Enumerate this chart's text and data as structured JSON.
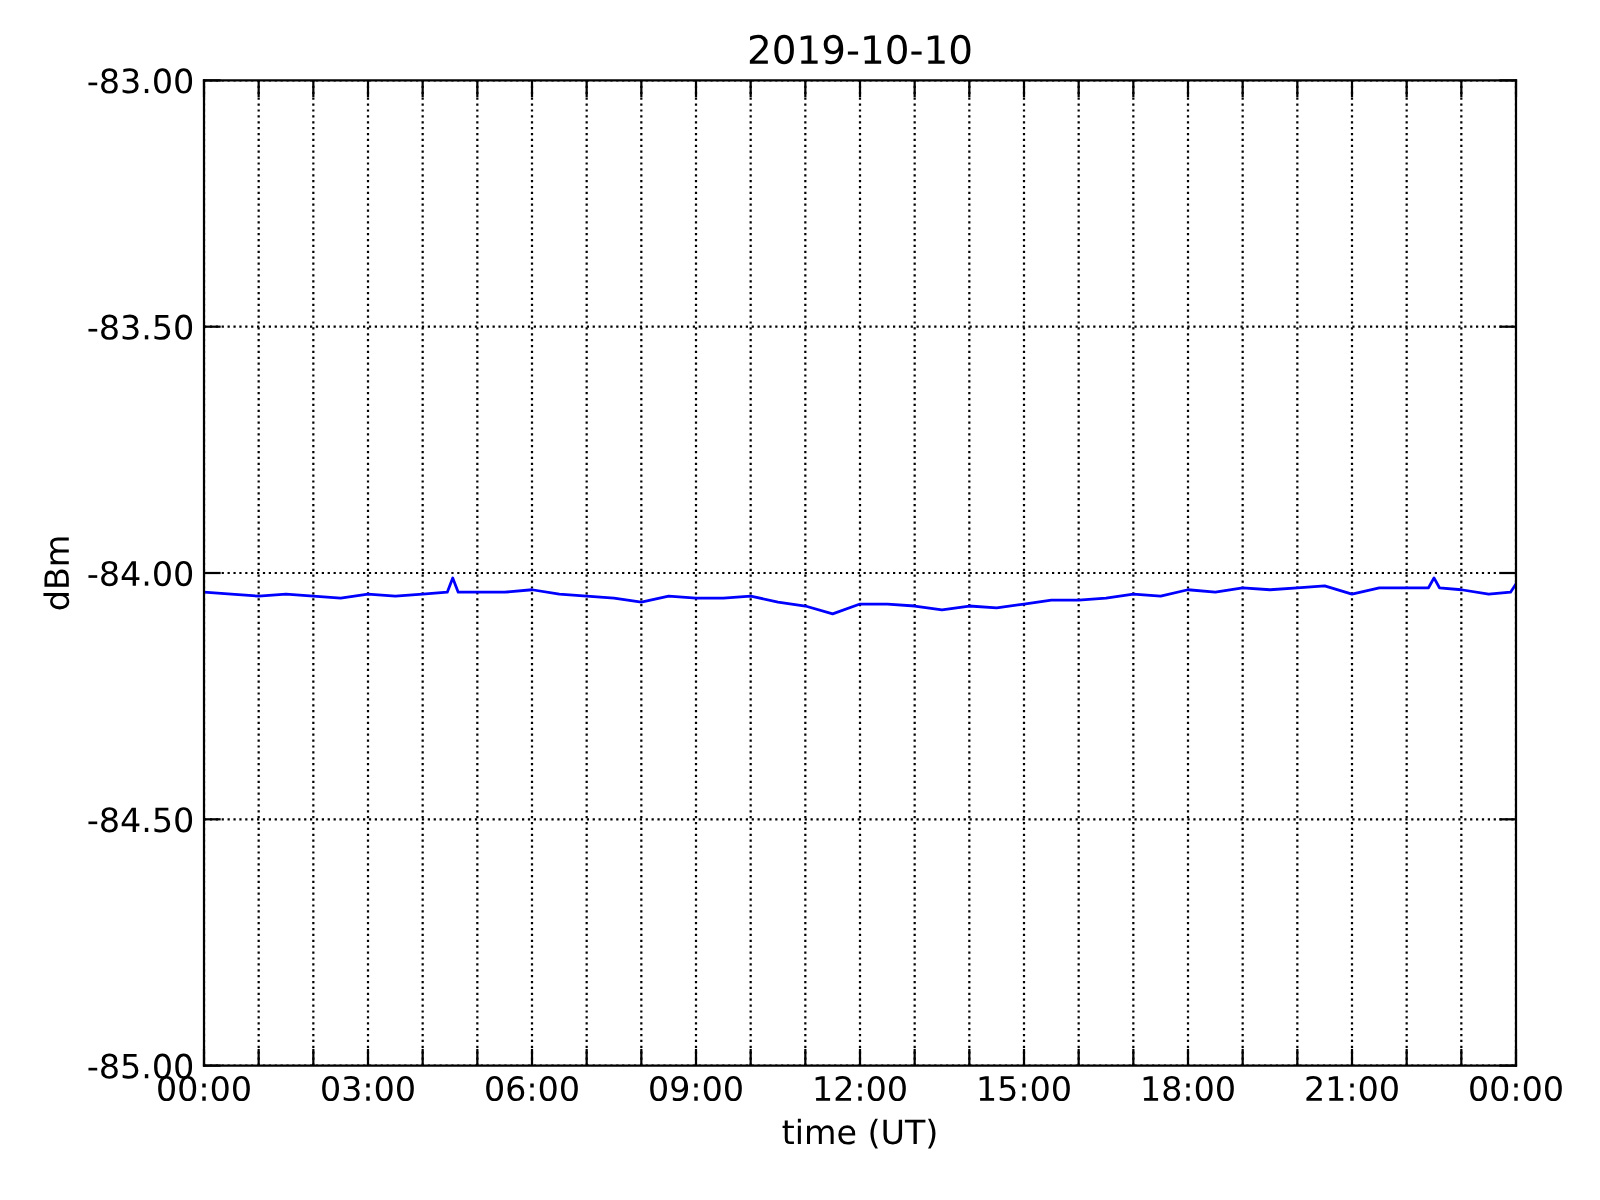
{
  "chart_data": {
    "type": "line",
    "title": "2019-10-10",
    "xlabel": "time (UT)",
    "ylabel": "dBm",
    "x": [
      0,
      0.5,
      1,
      1.5,
      2,
      2.5,
      3,
      3.5,
      4,
      4.45,
      4.55,
      4.65,
      5,
      5.5,
      6,
      6.5,
      7,
      7.5,
      8,
      8.5,
      9,
      9.5,
      10,
      10.5,
      11,
      11.5,
      12,
      12.5,
      13,
      13.5,
      14,
      14.5,
      15,
      15.5,
      16,
      16.5,
      17,
      17.5,
      18,
      18.5,
      19,
      19.5,
      20,
      20.5,
      21,
      21.5,
      22,
      22.4,
      22.5,
      22.6,
      23,
      23.5,
      23.9,
      24
    ],
    "series": [
      {
        "color": "#0000ff",
        "values": [
          -84.039,
          -84.043,
          -84.047,
          -84.043,
          -84.047,
          -84.051,
          -84.043,
          -84.047,
          -84.043,
          -84.039,
          -84.01,
          -84.039,
          -84.039,
          -84.039,
          -84.034,
          -84.043,
          -84.047,
          -84.051,
          -84.059,
          -84.047,
          -84.051,
          -84.051,
          -84.047,
          -84.059,
          -84.067,
          -84.083,
          -84.063,
          -84.063,
          -84.067,
          -84.075,
          -84.067,
          -84.071,
          -84.063,
          -84.055,
          -84.055,
          -84.051,
          -84.043,
          -84.047,
          -84.034,
          -84.039,
          -84.03,
          -84.034,
          -84.03,
          -84.026,
          -84.043,
          -84.03,
          -84.03,
          -84.03,
          -84.01,
          -84.03,
          -84.034,
          -84.043,
          -84.039,
          -84.022
        ]
      }
    ],
    "xlim": [
      0,
      24
    ],
    "xticks": [
      {
        "value": 0,
        "label": "00:00"
      },
      {
        "value": 1,
        "label": null
      },
      {
        "value": 2,
        "label": null
      },
      {
        "value": 3,
        "label": "03:00"
      },
      {
        "value": 4,
        "label": null
      },
      {
        "value": 5,
        "label": null
      },
      {
        "value": 6,
        "label": "06:00"
      },
      {
        "value": 7,
        "label": null
      },
      {
        "value": 8,
        "label": null
      },
      {
        "value": 9,
        "label": "09:00"
      },
      {
        "value": 10,
        "label": null
      },
      {
        "value": 11,
        "label": null
      },
      {
        "value": 12,
        "label": "12:00"
      },
      {
        "value": 13,
        "label": null
      },
      {
        "value": 14,
        "label": null
      },
      {
        "value": 15,
        "label": "15:00"
      },
      {
        "value": 16,
        "label": null
      },
      {
        "value": 17,
        "label": null
      },
      {
        "value": 18,
        "label": "18:00"
      },
      {
        "value": 19,
        "label": null
      },
      {
        "value": 20,
        "label": null
      },
      {
        "value": 21,
        "label": "21:00"
      },
      {
        "value": 22,
        "label": null
      },
      {
        "value": 23,
        "label": null
      },
      {
        "value": 24,
        "label": "00:00"
      }
    ],
    "ylim": [
      -85,
      -83
    ],
    "yticks": [
      {
        "value": -85,
        "label": "-85.00"
      },
      {
        "value": -84.5,
        "label": "-84.50"
      },
      {
        "value": -84,
        "label": "-84.00"
      },
      {
        "value": -83.5,
        "label": "-83.50"
      },
      {
        "value": -83,
        "label": "-83.00"
      }
    ],
    "grid": true,
    "marker": "none",
    "line_style": "solid"
  }
}
